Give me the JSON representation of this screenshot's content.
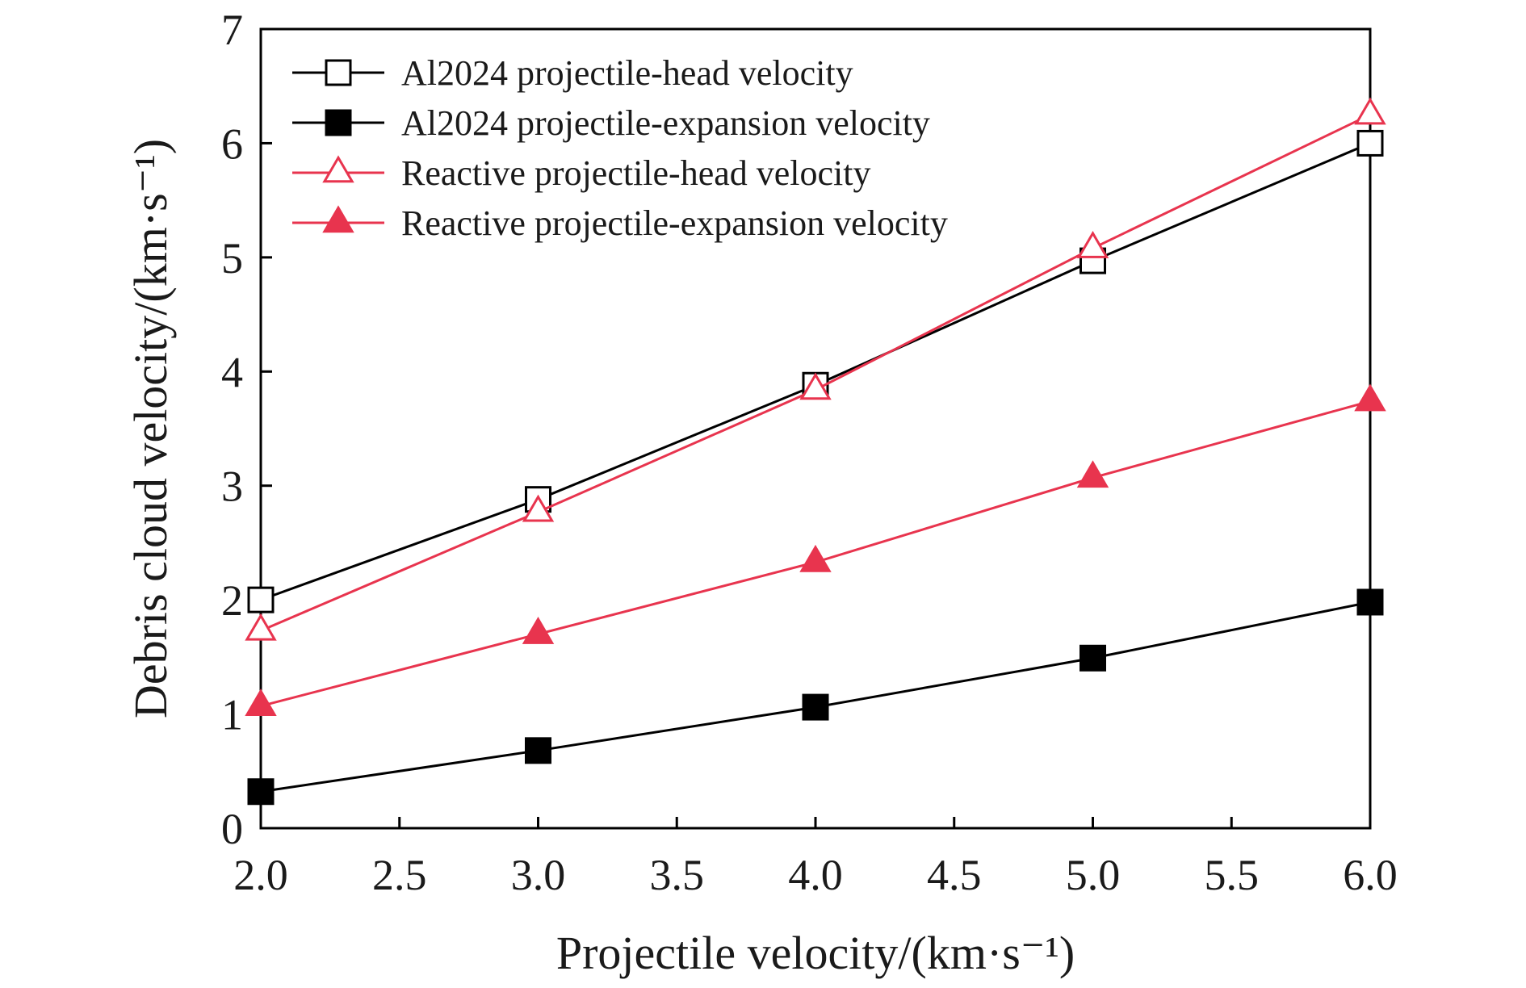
{
  "chart_data": {
    "type": "line",
    "title": "",
    "xlabel": "Projectile velocity/(km·s⁻¹)",
    "ylabel": "Debris cloud velocity/(km·s⁻¹)",
    "xlim": [
      2.0,
      6.0
    ],
    "ylim": [
      0,
      7
    ],
    "xticks": [
      2.0,
      2.5,
      3.0,
      3.5,
      4.0,
      4.5,
      5.0,
      5.5,
      6.0
    ],
    "xtick_labels": [
      "2.0",
      "2.5",
      "3.0",
      "3.5",
      "4.0",
      "4.5",
      "5.0",
      "5.5",
      "6.0"
    ],
    "yticks": [
      0,
      1,
      2,
      3,
      4,
      5,
      6,
      7
    ],
    "ytick_labels": [
      "0",
      "1",
      "2",
      "3",
      "4",
      "5",
      "6",
      "7"
    ],
    "grid": false,
    "legend_position": "top-left",
    "x": [
      2.0,
      3.0,
      4.0,
      5.0,
      6.0
    ],
    "series": [
      {
        "name": "Al2024 projectile-head velocity",
        "values": [
          2.0,
          2.88,
          3.88,
          4.97,
          6.0
        ],
        "color": "#000000",
        "marker": "square-open"
      },
      {
        "name": "Al2024 projectile-expansion velocity",
        "values": [
          0.32,
          0.68,
          1.06,
          1.49,
          1.98
        ],
        "color": "#000000",
        "marker": "square-filled"
      },
      {
        "name": "Reactive projectile-head velocity",
        "values": [
          1.73,
          2.77,
          3.84,
          5.08,
          6.25
        ],
        "color": "#e8344e",
        "marker": "triangle-open"
      },
      {
        "name": "Reactive projectile-expansion velocity",
        "values": [
          1.07,
          1.7,
          2.33,
          3.07,
          3.74
        ],
        "color": "#e8344e",
        "marker": "triangle-filled"
      }
    ]
  }
}
